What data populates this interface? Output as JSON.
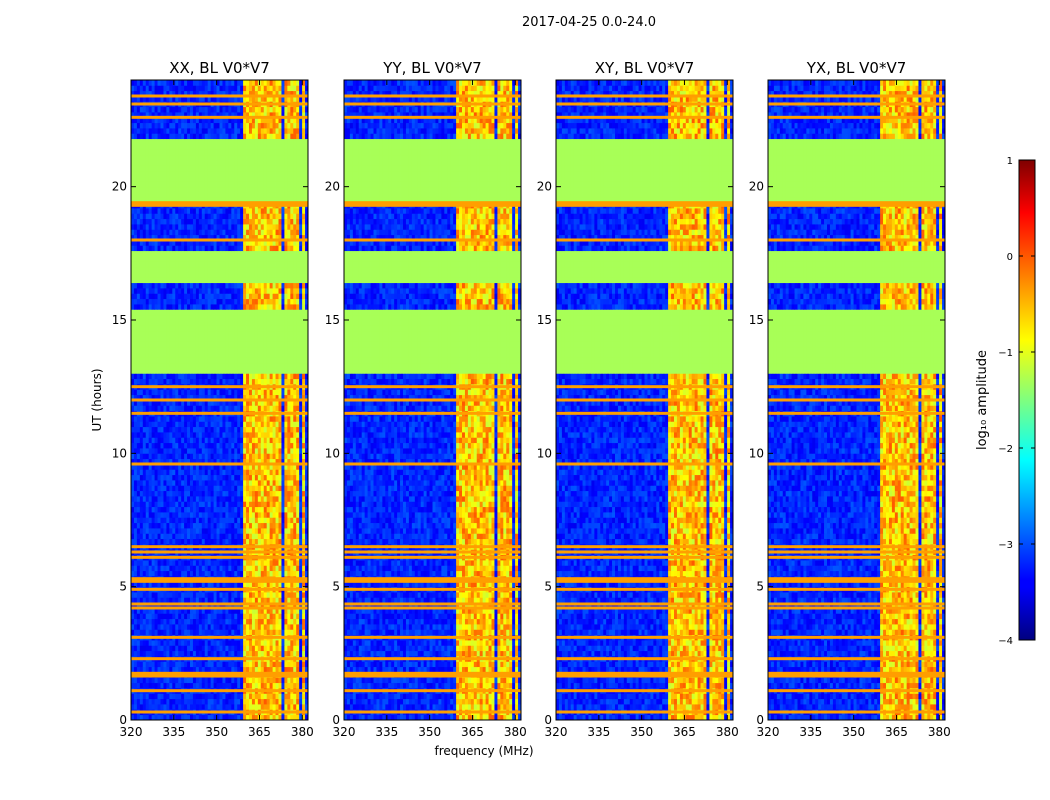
{
  "figure_title": "2017-04-25 0.0-24.0",
  "chart_data": {
    "type": "heatmap",
    "title": "2017-04-25 0.0-24.0",
    "xlabel": "frequency (MHz)",
    "ylabel": "UT (hours)",
    "xlim": [
      320,
      382
    ],
    "ylim": [
      0,
      24
    ],
    "x_ticks": [
      320,
      335,
      350,
      365,
      380
    ],
    "x_tick_labels": [
      "320",
      "335",
      "350",
      "365",
      "380"
    ],
    "y_ticks": [
      0,
      5,
      10,
      15,
      20
    ],
    "y_tick_labels": [
      "0",
      "5",
      "10",
      "15",
      "20"
    ],
    "panels": [
      {
        "title": "XX, BL V0*V7",
        "show_xlabel": false,
        "show_ylabel": true
      },
      {
        "title": "YY, BL V0*V7",
        "show_xlabel": true,
        "show_ylabel": false
      },
      {
        "title": "XY, BL V0*V7",
        "show_xlabel": false,
        "show_ylabel": false
      },
      {
        "title": "YX, BL V0*V7",
        "show_xlabel": false,
        "show_ylabel": false
      }
    ],
    "rfi_band_mhz": [
      359.5,
      380.5
    ],
    "rfi_sub_bands_mhz": [
      [
        359.5,
        364
      ],
      [
        364.5,
        366.5
      ],
      [
        367,
        370.5
      ],
      [
        371,
        373
      ],
      [
        373.5,
        375.5
      ],
      [
        376,
        379
      ],
      [
        379.5,
        380.5
      ]
    ],
    "flagged_ranges_ut": [
      [
        13.0,
        15.4
      ],
      [
        16.5,
        17.5
      ],
      [
        19.5,
        21.7
      ]
    ],
    "flagged_value": -1.3,
    "noise_floor_value": -3.2,
    "rfi_level_value": -0.6,
    "strong_rfi_rows_ut": [
      0.3,
      1.1,
      1.65,
      1.75,
      2.3,
      3.1,
      4.2,
      4.35,
      4.9,
      5.2,
      5.3,
      6.1,
      6.3,
      6.5,
      9.6,
      11.5,
      12.0,
      12.5,
      18.0,
      19.3,
      19.4,
      22.6,
      23.1,
      23.4
    ],
    "colorbar": {
      "label": "log₁₀ amplitude",
      "range": [
        -4,
        1
      ],
      "ticks": [
        1,
        0,
        -1,
        -2,
        -3,
        -4
      ],
      "tick_labels": [
        "1",
        "0",
        "−1",
        "−2",
        "−3",
        "−4"
      ],
      "colormap": "jet"
    }
  }
}
